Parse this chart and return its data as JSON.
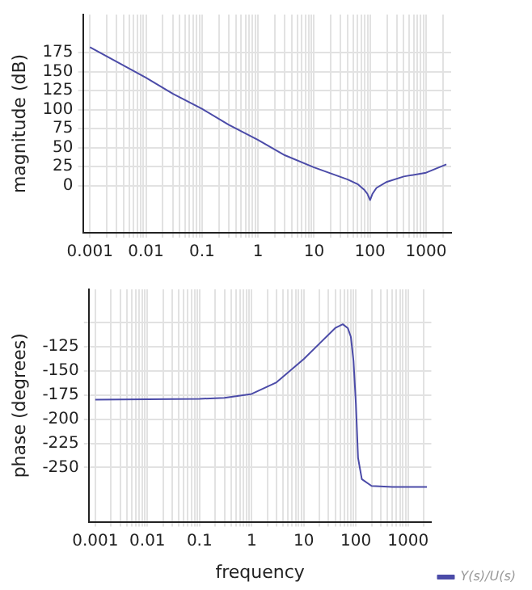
{
  "chart_data": [
    {
      "type": "line",
      "ylabel": "magnitude (dB)",
      "xlim": [
        0.00075,
        2800
      ],
      "ylim": [
        -62,
        225
      ],
      "log": "x",
      "grid": true,
      "legend": false,
      "marker": "none",
      "xticks": [
        0.001,
        {
          "value": 0.002,
          "label": null
        },
        {
          "value": 0.003,
          "label": null
        },
        {
          "value": 0.004,
          "label": null
        },
        {
          "value": 0.005,
          "label": null
        },
        {
          "value": 0.006,
          "label": null
        },
        {
          "value": 0.007,
          "label": null
        },
        {
          "value": 0.008,
          "label": null
        },
        {
          "value": 0.009,
          "label": null
        },
        0.01,
        {
          "value": 0.02,
          "label": null
        },
        {
          "value": 0.03,
          "label": null
        },
        {
          "value": 0.04,
          "label": null
        },
        {
          "value": 0.05,
          "label": null
        },
        {
          "value": 0.06,
          "label": null
        },
        {
          "value": 0.07,
          "label": null
        },
        {
          "value": 0.08,
          "label": null
        },
        {
          "value": 0.09,
          "label": null
        },
        0.1,
        {
          "value": 0.2,
          "label": null
        },
        {
          "value": 0.3,
          "label": null
        },
        {
          "value": 0.4,
          "label": null
        },
        {
          "value": 0.5,
          "label": null
        },
        {
          "value": 0.6,
          "label": null
        },
        {
          "value": 0.7,
          "label": null
        },
        {
          "value": 0.8,
          "label": null
        },
        {
          "value": 0.9,
          "label": null
        },
        1,
        {
          "value": 2,
          "label": null
        },
        {
          "value": 3,
          "label": null
        },
        {
          "value": 4,
          "label": null
        },
        {
          "value": 5,
          "label": null
        },
        {
          "value": 6,
          "label": null
        },
        {
          "value": 7,
          "label": null
        },
        {
          "value": 8,
          "label": null
        },
        {
          "value": 9,
          "label": null
        },
        10,
        {
          "value": 20,
          "label": null
        },
        {
          "value": 30,
          "label": null
        },
        {
          "value": 40,
          "label": null
        },
        {
          "value": 50,
          "label": null
        },
        {
          "value": 60,
          "label": null
        },
        {
          "value": 70,
          "label": null
        },
        {
          "value": 80,
          "label": null
        },
        {
          "value": 90,
          "label": null
        },
        100,
        {
          "value": 200,
          "label": null
        },
        {
          "value": 300,
          "label": null
        },
        {
          "value": 400,
          "label": null
        },
        {
          "value": 500,
          "label": null
        },
        {
          "value": 600,
          "label": null
        },
        {
          "value": 700,
          "label": null
        },
        {
          "value": 800,
          "label": null
        },
        {
          "value": 900,
          "label": null
        },
        1000,
        {
          "value": 2000,
          "label": null
        }
      ],
      "yticks": [
        0,
        25,
        50,
        75,
        100,
        125,
        150,
        175
      ],
      "series": [
        {
          "color": "#4b4ba8",
          "x": [
            0.001,
            0.003,
            0.01,
            0.03,
            0.1,
            0.3,
            1,
            3,
            10,
            20,
            40,
            60,
            80,
            90,
            100,
            110,
            130,
            200,
            400,
            1000,
            2300
          ],
          "values": [
            182,
            163,
            142,
            121,
            101,
            80,
            60,
            40,
            24,
            16,
            8,
            2,
            -6,
            -11,
            -19,
            -11,
            -3,
            5,
            12,
            17,
            28
          ]
        }
      ]
    },
    {
      "type": "line",
      "xlabel": "frequency",
      "ylabel": "phase (degrees)",
      "xlim": [
        0.00075,
        2800
      ],
      "ylim": [
        -306,
        -66
      ],
      "log": "x",
      "grid": true,
      "legend": "bottom right",
      "marker": "none",
      "xticks": [
        0.001,
        {
          "value": 0.002,
          "label": null
        },
        {
          "value": 0.003,
          "label": null
        },
        {
          "value": 0.004,
          "label": null
        },
        {
          "value": 0.005,
          "label": null
        },
        {
          "value": 0.006,
          "label": null
        },
        {
          "value": 0.007,
          "label": null
        },
        {
          "value": 0.008,
          "label": null
        },
        {
          "value": 0.009,
          "label": null
        },
        0.01,
        {
          "value": 0.02,
          "label": null
        },
        {
          "value": 0.03,
          "label": null
        },
        {
          "value": 0.04,
          "label": null
        },
        {
          "value": 0.05,
          "label": null
        },
        {
          "value": 0.06,
          "label": null
        },
        {
          "value": 0.07,
          "label": null
        },
        {
          "value": 0.08,
          "label": null
        },
        {
          "value": 0.09,
          "label": null
        },
        0.1,
        {
          "value": 0.2,
          "label": null
        },
        {
          "value": 0.3,
          "label": null
        },
        {
          "value": 0.4,
          "label": null
        },
        {
          "value": 0.5,
          "label": null
        },
        {
          "value": 0.6,
          "label": null
        },
        {
          "value": 0.7,
          "label": null
        },
        {
          "value": 0.8,
          "label": null
        },
        {
          "value": 0.9,
          "label": null
        },
        1,
        {
          "value": 2,
          "label": null
        },
        {
          "value": 3,
          "label": null
        },
        {
          "value": 4,
          "label": null
        },
        {
          "value": 5,
          "label": null
        },
        {
          "value": 6,
          "label": null
        },
        {
          "value": 7,
          "label": null
        },
        {
          "value": 8,
          "label": null
        },
        {
          "value": 9,
          "label": null
        },
        10,
        {
          "value": 20,
          "label": null
        },
        {
          "value": 30,
          "label": null
        },
        {
          "value": 40,
          "label": null
        },
        {
          "value": 50,
          "label": null
        },
        {
          "value": 60,
          "label": null
        },
        {
          "value": 70,
          "label": null
        },
        {
          "value": 80,
          "label": null
        },
        {
          "value": 90,
          "label": null
        },
        100,
        {
          "value": 200,
          "label": null
        },
        {
          "value": 300,
          "label": null
        },
        {
          "value": 400,
          "label": null
        },
        {
          "value": 500,
          "label": null
        },
        {
          "value": 600,
          "label": null
        },
        {
          "value": 700,
          "label": null
        },
        {
          "value": 800,
          "label": null
        },
        {
          "value": 900,
          "label": null
        },
        1000,
        {
          "value": 2000,
          "label": null
        }
      ],
      "yticks": [
        {
          "value": -100,
          "label": null
        },
        -125,
        -150,
        -175,
        -200,
        -225,
        -250
      ],
      "series": [
        {
          "name": "Y(s)/U(s)",
          "color": "#4b4ba8",
          "x": [
            0.001,
            0.1,
            0.3,
            1,
            3,
            10,
            20,
            40,
            56,
            70,
            80,
            90,
            100,
            110,
            130,
            200,
            500,
            2300
          ],
          "values": [
            -180,
            -179,
            -178,
            -174,
            -162,
            -138,
            -122,
            -106,
            -102,
            -106,
            -115,
            -140,
            -184,
            -240,
            -262,
            -269,
            -270,
            -270
          ]
        }
      ]
    }
  ]
}
